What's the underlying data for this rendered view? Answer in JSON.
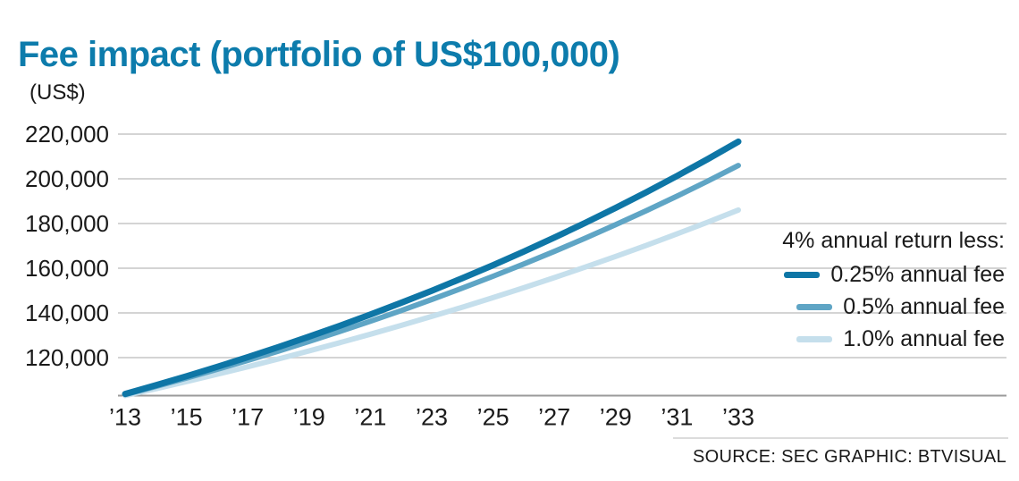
{
  "chart_data": {
    "type": "line",
    "title": "Fee impact (portfolio of US$100,000)",
    "ylabel": "(US$)",
    "legend_title": "4% annual return less:",
    "legend_position": "right",
    "grid": true,
    "ylim": [
      103000,
      224000
    ],
    "x": [
      2013,
      2014,
      2015,
      2016,
      2017,
      2018,
      2019,
      2020,
      2021,
      2022,
      2023,
      2024,
      2025,
      2026,
      2027,
      2028,
      2029,
      2030,
      2031,
      2032,
      2033
    ],
    "x_ticks": [
      2013,
      2015,
      2017,
      2019,
      2021,
      2023,
      2025,
      2027,
      2029,
      2031,
      2033
    ],
    "x_tick_labels": [
      "’13",
      "’15",
      "’17",
      "’19",
      "’21",
      "’23",
      "’25",
      "’27",
      "’29",
      "’31",
      "’33"
    ],
    "y_ticks": [
      220000,
      200000,
      180000,
      160000,
      140000,
      120000
    ],
    "y_tick_labels": [
      "220,000",
      "200,000",
      "180,000",
      "160,000",
      "140,000",
      "120,000"
    ],
    "series": [
      {
        "name": "0.25% annual fee",
        "color": "#0e76a6",
        "width": 7,
        "values": [
          103750,
          107641,
          111677,
          115865,
          120210,
          124718,
          129395,
          134247,
          139281,
          144504,
          149923,
          155545,
          161378,
          167430,
          173709,
          180223,
          186981,
          193993,
          201268,
          208815,
          216646
        ]
      },
      {
        "name": "0.5% annual fee",
        "color": "#5fa5c5",
        "width": 6,
        "values": [
          103500,
          107123,
          110872,
          114752,
          118769,
          122926,
          127228,
          131681,
          136290,
          141060,
          145997,
          151107,
          156396,
          161869,
          167535,
          173399,
          179468,
          185749,
          192250,
          198979,
          205943
        ]
      },
      {
        "name": "1.0% annual fee",
        "color": "#c5dfec",
        "width": 6,
        "values": [
          103000,
          106090,
          109273,
          112551,
          115927,
          119405,
          122987,
          126677,
          130477,
          134392,
          138423,
          142576,
          146853,
          151259,
          155797,
          160471,
          165285,
          170243,
          175351,
          180611,
          186029
        ]
      }
    ]
  },
  "footer": {
    "source": "SOURCE: SEC  GRAPHIC: BTVISUAL"
  },
  "colors": {
    "grid": "#d4d4d4",
    "axis": "#9a9a9a",
    "text": "#1a1a1a",
    "title": "#0d7cac"
  }
}
